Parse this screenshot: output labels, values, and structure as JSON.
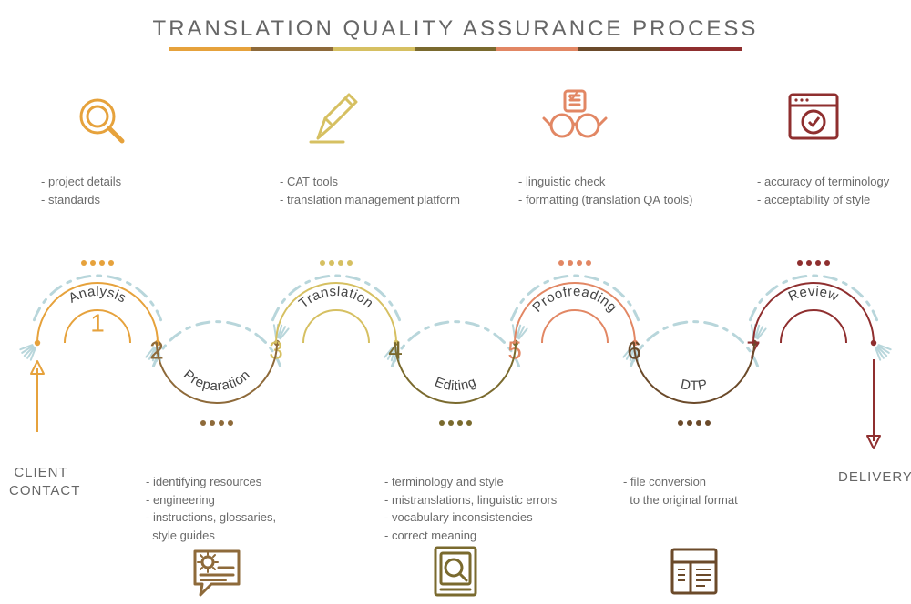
{
  "title": "TRANSLATION QUALITY ASSURANCE PROCESS",
  "layout": {
    "baselineY": 377,
    "arcRadius": 66,
    "upCenters": [
      107,
      369,
      631,
      893
    ],
    "downCenters": [
      238,
      500,
      762
    ],
    "underlineStart": 185,
    "underlineEnd": 815,
    "underlineSegments": 7
  },
  "underlineColors": [
    "#e6a23c",
    "#8e6a3a",
    "#d6c062",
    "#7a6a2e",
    "#e28764",
    "#6b4a2a",
    "#8f2f2f"
  ],
  "accent": "#b8d6db",
  "stepColors": [
    "#e6a23c",
    "#8e6a3a",
    "#d6c062",
    "#7a6a2e",
    "#e28764",
    "#6b4a2a",
    "#8f2f2f"
  ],
  "start": {
    "label": "CLIENT\nCONTACT",
    "arrowColor": "#e6a23c"
  },
  "end": {
    "label": "DELIVERY",
    "arrowColor": "#8f2f2f"
  },
  "steps": [
    {
      "num": "1",
      "label": "Analysis",
      "orient": "up",
      "items": [
        "- project details",
        "- standards"
      ]
    },
    {
      "num": "2",
      "label": "Preparation",
      "orient": "down",
      "items": [
        "- identifying resources",
        "- engineering",
        "- instructions, glossaries,",
        "  style guides"
      ]
    },
    {
      "num": "3",
      "label": "Translation",
      "orient": "up",
      "items": [
        "- CAT tools",
        "- translation management platform"
      ]
    },
    {
      "num": "4",
      "label": "Editing",
      "orient": "down",
      "items": [
        "- terminology and style",
        "- mistranslations, linguistic errors",
        "- vocabulary inconsistencies",
        "- correct meaning"
      ]
    },
    {
      "num": "5",
      "label": "Proofreading",
      "orient": "up",
      "items": [
        "- linguistic check",
        "- formatting (translation QA tools)"
      ]
    },
    {
      "num": "6",
      "label": "DTP",
      "orient": "down",
      "items": [
        "- file conversion",
        "  to the original format"
      ]
    },
    {
      "num": "7",
      "label": "Review",
      "orient": "up",
      "items": [
        "- accuracy of terminology",
        "- acceptability of style"
      ]
    }
  ],
  "icons": [
    {
      "name": "magnifier-icon",
      "color": "#e6a23c"
    },
    {
      "name": "pencil-icon",
      "color": "#d6c062"
    },
    {
      "name": "glasses-icon",
      "color": "#e28764"
    },
    {
      "name": "browser-check-icon",
      "color": "#8f2f2f"
    },
    {
      "name": "gear-chat-icon",
      "color": "#8e6a3a"
    },
    {
      "name": "book-search-icon",
      "color": "#7a6a2e"
    },
    {
      "name": "layout-icon",
      "color": "#6b4a2a"
    }
  ]
}
